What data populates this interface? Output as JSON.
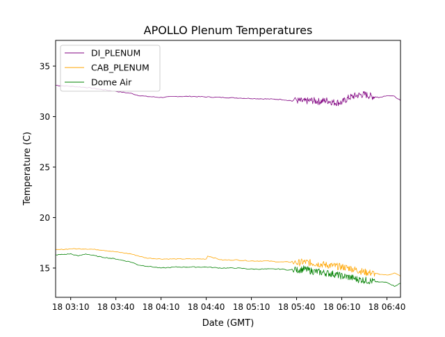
{
  "chart_data": {
    "type": "line",
    "title": "APOLLO Plenum Temperatures",
    "xlabel": "Date (GMT)",
    "ylabel": "Temperature (C)",
    "x_unit": "minutes since 18 03:00 GMT",
    "xlim": [
      0,
      229
    ],
    "ylim": [
      12.1,
      37.55
    ],
    "x_ticks": [
      {
        "value": 10,
        "label": "18 03:10"
      },
      {
        "value": 40,
        "label": "18 03:40"
      },
      {
        "value": 70,
        "label": "18 04:10"
      },
      {
        "value": 100,
        "label": "18 04:40"
      },
      {
        "value": 130,
        "label": "18 05:10"
      },
      {
        "value": 160,
        "label": "18 05:40"
      },
      {
        "value": 190,
        "label": "18 06:10"
      },
      {
        "value": 220,
        "label": "18 06:40"
      }
    ],
    "y_ticks": [
      {
        "value": 15,
        "label": "15"
      },
      {
        "value": 20,
        "label": "20"
      },
      {
        "value": 25,
        "label": "25"
      },
      {
        "value": 30,
        "label": "30"
      },
      {
        "value": 35,
        "label": "35"
      }
    ],
    "grid": false,
    "legend": {
      "placement": "top-left"
    },
    "series": [
      {
        "name": "DI_PLENUM",
        "color": "#800080",
        "x": [
          0,
          10,
          20,
          30,
          40,
          50,
          55,
          60,
          70,
          80,
          90,
          100,
          110,
          120,
          130,
          140,
          150,
          155,
          160,
          165,
          170,
          175,
          180,
          185,
          190,
          195,
          200,
          205,
          210,
          215,
          220,
          225,
          229
        ],
        "y": [
          33.1,
          33.0,
          32.9,
          32.7,
          32.5,
          32.3,
          32.1,
          32.0,
          31.9,
          32.0,
          32.0,
          31.95,
          31.9,
          31.85,
          31.8,
          31.75,
          31.7,
          31.6,
          31.6,
          31.5,
          31.6,
          31.5,
          31.6,
          31.4,
          31.4,
          31.9,
          32.1,
          32.2,
          32.0,
          31.9,
          32.1,
          32.0,
          31.6
        ]
      },
      {
        "name": "CAB_PLENUM",
        "color": "#ffa500",
        "x": [
          0,
          10,
          20,
          30,
          40,
          50,
          55,
          60,
          70,
          80,
          90,
          100,
          101,
          110,
          120,
          130,
          140,
          150,
          155,
          160,
          165,
          170,
          175,
          180,
          185,
          190,
          195,
          200,
          205,
          210,
          215,
          220,
          225,
          229
        ],
        "y": [
          16.8,
          16.9,
          16.9,
          16.8,
          16.6,
          16.4,
          16.2,
          16.0,
          15.9,
          15.9,
          15.9,
          15.9,
          16.2,
          15.8,
          15.8,
          15.7,
          15.7,
          15.6,
          15.6,
          15.5,
          15.6,
          15.5,
          15.4,
          15.3,
          15.2,
          15.1,
          15.0,
          14.8,
          14.6,
          14.5,
          14.4,
          14.3,
          14.5,
          14.2
        ]
      },
      {
        "name": "Dome Air",
        "color": "#008000",
        "x": [
          0,
          10,
          15,
          20,
          30,
          40,
          50,
          55,
          60,
          70,
          80,
          90,
          100,
          110,
          120,
          130,
          140,
          150,
          155,
          160,
          165,
          170,
          175,
          180,
          185,
          190,
          195,
          200,
          205,
          210,
          215,
          220,
          225,
          229
        ],
        "y": [
          16.3,
          16.4,
          16.2,
          16.4,
          16.1,
          15.9,
          15.6,
          15.3,
          15.2,
          15.0,
          15.1,
          15.1,
          15.1,
          15.0,
          15.0,
          14.9,
          14.9,
          14.9,
          14.8,
          14.8,
          14.9,
          14.7,
          14.6,
          14.5,
          14.4,
          14.2,
          14.1,
          13.9,
          13.8,
          13.7,
          13.6,
          13.6,
          13.2,
          13.5
        ]
      }
    ]
  }
}
